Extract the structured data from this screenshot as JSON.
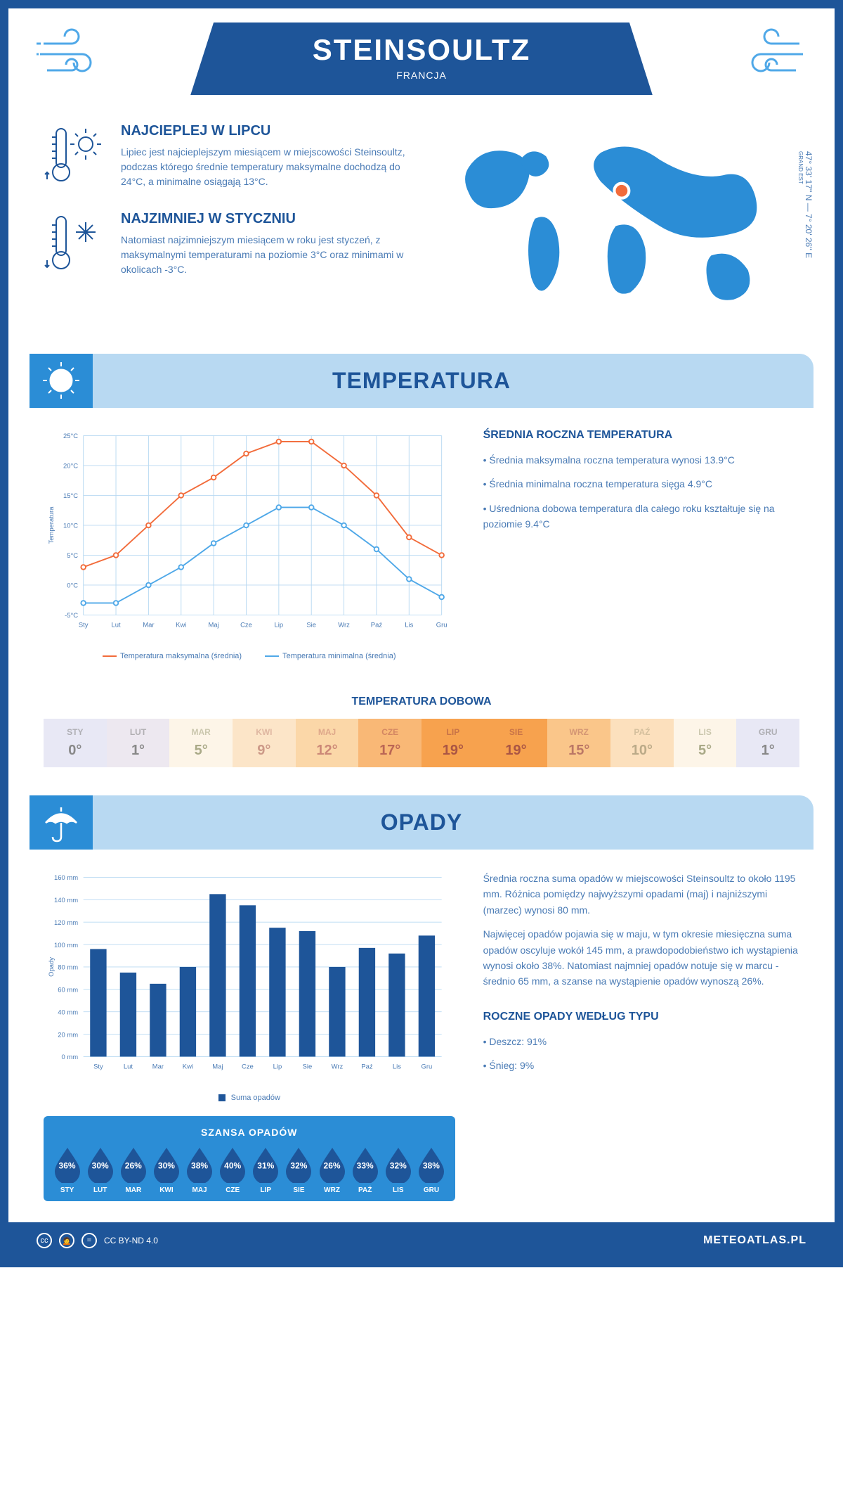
{
  "header": {
    "city": "STEINSOULTZ",
    "country": "FRANCJA"
  },
  "coords": {
    "text": "47° 33' 17'' N — 7° 20' 26'' E",
    "region": "GRAND EST"
  },
  "intro": {
    "hot": {
      "title": "NAJCIEPLEJ W LIPCU",
      "text": "Lipiec jest najcieplejszym miesiącem w miejscowości Steinsoultz, podczas którego średnie temperatury maksymalne dochodzą do 24°C, a minimalne osiągają 13°C."
    },
    "cold": {
      "title": "NAJZIMNIEJ W STYCZNIU",
      "text": "Natomiast najzimniejszym miesiącem w roku jest styczeń, z maksymalnymi temperaturami na poziomie 3°C oraz minimami w okolicach -3°C."
    }
  },
  "temperatura": {
    "section_title": "TEMPERATURA",
    "chart": {
      "type": "line",
      "months": [
        "Sty",
        "Lut",
        "Mar",
        "Kwi",
        "Maj",
        "Cze",
        "Lip",
        "Sie",
        "Wrz",
        "Paź",
        "Lis",
        "Gru"
      ],
      "max_values": [
        3,
        5,
        10,
        15,
        18,
        22,
        24,
        24,
        20,
        15,
        8,
        5
      ],
      "min_values": [
        -3,
        -3,
        0,
        3,
        7,
        10,
        13,
        13,
        10,
        6,
        1,
        -2
      ],
      "max_color": "#f26b3a",
      "min_color": "#4fa8e8",
      "y_min": -5,
      "y_max": 25,
      "y_step": 5,
      "y_label": "Temperatura",
      "grid_color": "#b8d9f2",
      "background": "#ffffff",
      "legend_max": "Temperatura maksymalna (średnia)",
      "legend_min": "Temperatura minimalna (średnia)"
    },
    "side": {
      "title": "ŚREDNIA ROCZNA TEMPERATURA",
      "b1": "• Średnia maksymalna roczna temperatura wynosi 13.9°C",
      "b2": "• Średnia minimalna roczna temperatura sięga 4.9°C",
      "b3": "• Uśredniona dobowa temperatura dla całego roku kształtuje się na poziomie 9.4°C"
    },
    "dobowa": {
      "title": "TEMPERATURA DOBOWA",
      "months": [
        "STY",
        "LUT",
        "MAR",
        "KWI",
        "MAJ",
        "CZE",
        "LIP",
        "SIE",
        "WRZ",
        "PAŹ",
        "LIS",
        "GRU"
      ],
      "values": [
        "0°",
        "1°",
        "5°",
        "9°",
        "12°",
        "17°",
        "19°",
        "19°",
        "15°",
        "10°",
        "5°",
        "1°"
      ],
      "colors": [
        "#e8e8f5",
        "#ede8f0",
        "#fdf5e8",
        "#fce5c8",
        "#fbd7a8",
        "#f9b876",
        "#f7a24e",
        "#f7a24e",
        "#fac68a",
        "#fce0bd",
        "#fdf5e8",
        "#e8e8f5"
      ],
      "text_colors": [
        "#888",
        "#888",
        "#aa8",
        "#c98",
        "#c87",
        "#b65",
        "#a54",
        "#a54",
        "#b76",
        "#ba8",
        "#aa8",
        "#888"
      ]
    }
  },
  "opady": {
    "section_title": "OPADY",
    "chart": {
      "type": "bar",
      "months": [
        "Sty",
        "Lut",
        "Mar",
        "Kwi",
        "Maj",
        "Cze",
        "Lip",
        "Sie",
        "Wrz",
        "Paź",
        "Lis",
        "Gru"
      ],
      "values": [
        96,
        75,
        65,
        80,
        145,
        135,
        115,
        112,
        80,
        97,
        92,
        108
      ],
      "bar_color": "#1e5599",
      "y_min": 0,
      "y_max": 160,
      "y_step": 20,
      "y_label": "Opady",
      "grid_color": "#b8d9f2",
      "legend": "Suma opadów"
    },
    "side": {
      "p1": "Średnia roczna suma opadów w miejscowości Steinsoultz to około 1195 mm. Różnica pomiędzy najwyższymi opadami (maj) i najniższymi (marzec) wynosi 80 mm.",
      "p2": "Najwięcej opadów pojawia się w maju, w tym okresie miesięczna suma opadów oscyluje wokół 145 mm, a prawdopodobieństwo ich wystąpienia wynosi około 38%. Natomiast najmniej opadów notuje się w marcu - średnio 65 mm, a szanse na wystąpienie opadów wynoszą 26%."
    },
    "szansa": {
      "title": "SZANSA OPADÓW",
      "months": [
        "STY",
        "LUT",
        "MAR",
        "KWI",
        "MAJ",
        "CZE",
        "LIP",
        "SIE",
        "WRZ",
        "PAŹ",
        "LIS",
        "GRU"
      ],
      "values": [
        "36%",
        "30%",
        "26%",
        "30%",
        "38%",
        "40%",
        "31%",
        "32%",
        "26%",
        "33%",
        "32%",
        "38%"
      ],
      "drop_color": "#1e5599",
      "bg_color": "#2b8dd6"
    },
    "typu": {
      "title": "ROCZNE OPADY WEDŁUG TYPU",
      "b1": "• Deszcz: 91%",
      "b2": "• Śnieg: 9%"
    }
  },
  "footer": {
    "license": "CC BY-ND 4.0",
    "site": "METEOATLAS.PL"
  },
  "colors": {
    "primary": "#1e5599",
    "light_blue": "#b8d9f2",
    "medium_blue": "#2b8dd6",
    "accent_blue": "#4fa8e8"
  }
}
